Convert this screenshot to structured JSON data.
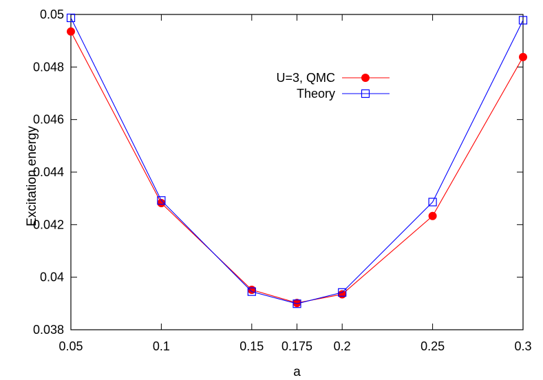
{
  "chart_data": {
    "type": "line",
    "title": "",
    "xlabel": "a",
    "ylabel": "Excitation energy",
    "xlim": [
      0.05,
      0.3
    ],
    "ylim": [
      0.038,
      0.05
    ],
    "grid": false,
    "legend_position": "top-right",
    "x_ticks": [
      {
        "value": 0.05,
        "label": "0.05"
      },
      {
        "value": 0.1,
        "label": "0.1"
      },
      {
        "value": 0.15,
        "label": "0.15"
      },
      {
        "value": 0.175,
        "label": "0.175"
      },
      {
        "value": 0.2,
        "label": "0.2"
      },
      {
        "value": 0.25,
        "label": "0.25"
      },
      {
        "value": 0.3,
        "label": "0.3"
      }
    ],
    "y_ticks": [
      {
        "value": 0.038,
        "label": "0.038"
      },
      {
        "value": 0.04,
        "label": "0.04"
      },
      {
        "value": 0.042,
        "label": "0.042"
      },
      {
        "value": 0.044,
        "label": "0.044"
      },
      {
        "value": 0.046,
        "label": "0.046"
      },
      {
        "value": 0.048,
        "label": "0.048"
      },
      {
        "value": 0.05,
        "label": "0.05"
      }
    ],
    "series": [
      {
        "name": "U=3, QMC",
        "color": "#ff0000",
        "marker": "filled-circle",
        "x": [
          0.05,
          0.1,
          0.15,
          0.175,
          0.2,
          0.25,
          0.3
        ],
        "y": [
          0.04935,
          0.04282,
          0.03952,
          0.03902,
          0.03935,
          0.04233,
          0.04838
        ]
      },
      {
        "name": "Theory",
        "color": "#0000ff",
        "marker": "open-square",
        "x": [
          0.05,
          0.1,
          0.15,
          0.175,
          0.2,
          0.25,
          0.3
        ],
        "y": [
          0.04987,
          0.04292,
          0.03945,
          0.03899,
          0.03942,
          0.04286,
          0.04978
        ]
      }
    ]
  }
}
